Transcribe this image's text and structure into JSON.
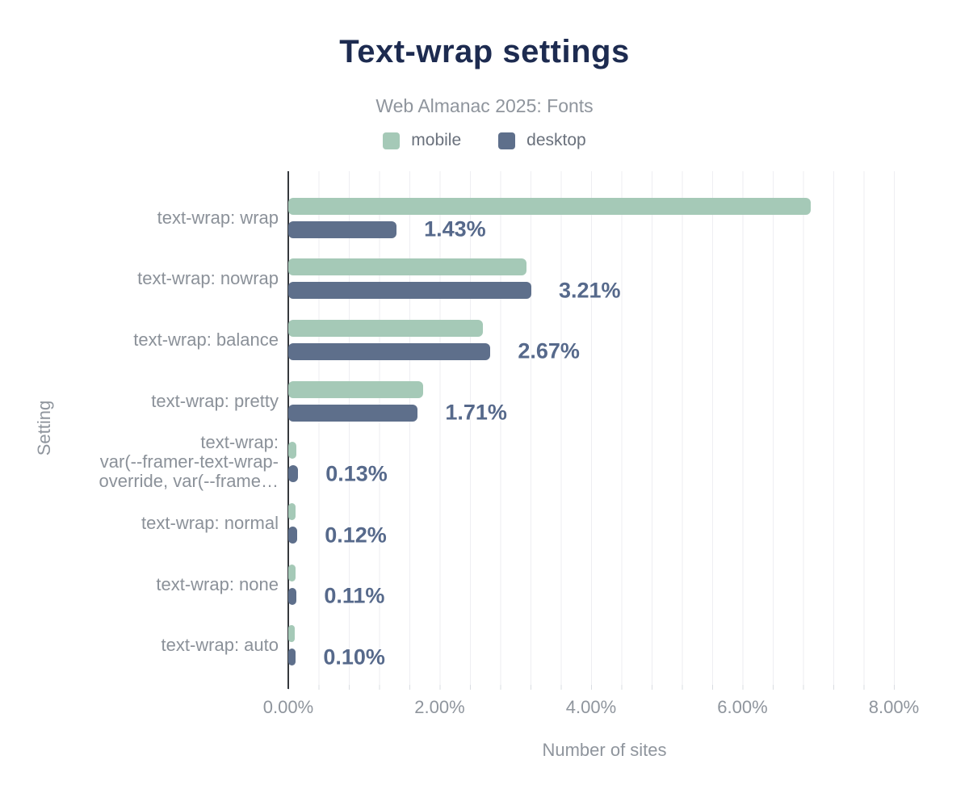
{
  "header": {
    "title": "Text-wrap settings",
    "subtitle": "Web Almanac 2025: Fonts"
  },
  "legend": [
    {
      "name": "mobile",
      "color": "#a5c9b7"
    },
    {
      "name": "desktop",
      "color": "#5e6f8b"
    }
  ],
  "axes": {
    "x_title": "Number of sites",
    "y_title": "Setting",
    "x_tick_labels": [
      "0.00%",
      "2.00%",
      "4.00%",
      "6.00%",
      "8.00%"
    ]
  },
  "colors": {
    "title": "#1d2b50",
    "subtitle": "#8f959d",
    "category_label": "#8b9199",
    "value_label": "#56698b",
    "gridline": "#eeeef2",
    "axis_line": "#35383d",
    "mobile": "#a5c9b7",
    "desktop": "#5e6f8b"
  },
  "chart_data": {
    "type": "bar",
    "orientation": "horizontal",
    "title": "Text-wrap settings",
    "subtitle": "Web Almanac 2025: Fonts",
    "xlabel": "Number of sites",
    "ylabel": "Setting",
    "xlim": [
      0,
      8.35
    ],
    "x_tick_values": [
      0,
      2,
      4,
      6,
      8
    ],
    "x_tick_labels": [
      "0.00%",
      "2.00%",
      "4.00%",
      "6.00%",
      "8.00%"
    ],
    "grid": "vertical-minor",
    "legend_position": "top",
    "categories": [
      "text-wrap: wrap",
      "text-wrap: nowrap",
      "text-wrap: balance",
      "text-wrap: pretty",
      "text-wrap: var(--framer-text-wrap-override, var(--frame…",
      "text-wrap: normal",
      "text-wrap: none",
      "text-wrap: auto"
    ],
    "category_display_lines": [
      [
        "text-wrap: wrap"
      ],
      [
        "text-wrap: nowrap"
      ],
      [
        "text-wrap: balance"
      ],
      [
        "text-wrap: pretty"
      ],
      [
        "text-wrap:",
        "var(--framer-text-wrap-",
        "override, var(--frame…"
      ],
      [
        "text-wrap: normal"
      ],
      [
        "text-wrap: none"
      ],
      [
        "text-wrap: auto"
      ]
    ],
    "series": [
      {
        "name": "mobile",
        "color": "#a5c9b7",
        "values": [
          6.9,
          3.15,
          2.57,
          1.78,
          0.11,
          0.1,
          0.1,
          0.09
        ]
      },
      {
        "name": "desktop",
        "color": "#5e6f8b",
        "values": [
          1.43,
          3.21,
          2.67,
          1.71,
          0.13,
          0.12,
          0.11,
          0.1
        ]
      }
    ],
    "value_labels": {
      "labeled_series": "desktop",
      "texts": [
        "1.43%",
        "3.21%",
        "2.67%",
        "1.71%",
        "0.13%",
        "0.12%",
        "0.11%",
        "0.10%"
      ]
    }
  }
}
